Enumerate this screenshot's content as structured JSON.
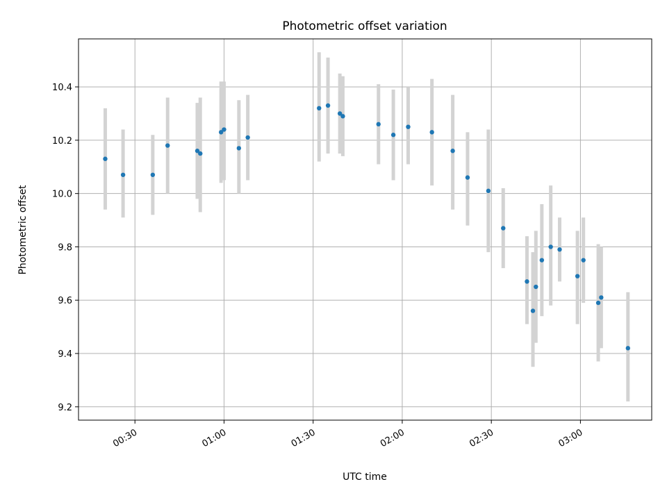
{
  "chart_data": {
    "type": "scatter",
    "title": "Photometric offset variation",
    "xlabel": "UTC time",
    "ylabel": "Photometric offset",
    "xlim": [
      "00:11",
      "03:24"
    ],
    "ylim": [
      9.15,
      10.58
    ],
    "x_ticks": [
      "00:30",
      "01:00",
      "01:30",
      "02:00",
      "02:30",
      "03:00"
    ],
    "y_ticks": [
      9.2,
      9.4,
      9.6,
      9.8,
      10.0,
      10.2,
      10.4
    ],
    "grid": true,
    "colors": {
      "points": "#1f77b4",
      "errorbars": "#d3d3d3",
      "grid": "#b0b0b0"
    },
    "series": [
      {
        "points": [
          {
            "x": "00:20",
            "y": 10.13,
            "err_low": 9.94,
            "err_high": 10.32
          },
          {
            "x": "00:26",
            "y": 10.07,
            "err_low": 9.91,
            "err_high": 10.24
          },
          {
            "x": "00:36",
            "y": 10.07,
            "err_low": 9.92,
            "err_high": 10.22
          },
          {
            "x": "00:41",
            "y": 10.18,
            "err_low": 10.0,
            "err_high": 10.36
          },
          {
            "x": "00:51",
            "y": 10.16,
            "err_low": 9.98,
            "err_high": 10.34
          },
          {
            "x": "00:52",
            "y": 10.15,
            "err_low": 9.93,
            "err_high": 10.36
          },
          {
            "x": "00:59",
            "y": 10.23,
            "err_low": 10.04,
            "err_high": 10.42
          },
          {
            "x": "01:00",
            "y": 10.24,
            "err_low": 10.05,
            "err_high": 10.42
          },
          {
            "x": "01:05",
            "y": 10.17,
            "err_low": 10.0,
            "err_high": 10.35
          },
          {
            "x": "01:08",
            "y": 10.21,
            "err_low": 10.05,
            "err_high": 10.37
          },
          {
            "x": "01:32",
            "y": 10.32,
            "err_low": 10.12,
            "err_high": 10.53
          },
          {
            "x": "01:35",
            "y": 10.33,
            "err_low": 10.15,
            "err_high": 10.51
          },
          {
            "x": "01:39",
            "y": 10.3,
            "err_low": 10.15,
            "err_high": 10.45
          },
          {
            "x": "01:40",
            "y": 10.29,
            "err_low": 10.14,
            "err_high": 10.44
          },
          {
            "x": "01:52",
            "y": 10.26,
            "err_low": 10.11,
            "err_high": 10.41
          },
          {
            "x": "01:57",
            "y": 10.22,
            "err_low": 10.05,
            "err_high": 10.39
          },
          {
            "x": "02:02",
            "y": 10.25,
            "err_low": 10.11,
            "err_high": 10.4
          },
          {
            "x": "02:10",
            "y": 10.23,
            "err_low": 10.03,
            "err_high": 10.43
          },
          {
            "x": "02:17",
            "y": 10.16,
            "err_low": 9.94,
            "err_high": 10.37
          },
          {
            "x": "02:22",
            "y": 10.06,
            "err_low": 9.88,
            "err_high": 10.23
          },
          {
            "x": "02:29",
            "y": 10.01,
            "err_low": 9.78,
            "err_high": 10.24
          },
          {
            "x": "02:34",
            "y": 9.87,
            "err_low": 9.72,
            "err_high": 10.02
          },
          {
            "x": "02:42",
            "y": 9.67,
            "err_low": 9.51,
            "err_high": 9.84
          },
          {
            "x": "02:44",
            "y": 9.56,
            "err_low": 9.35,
            "err_high": 9.78
          },
          {
            "x": "02:45",
            "y": 9.65,
            "err_low": 9.44,
            "err_high": 9.86
          },
          {
            "x": "02:47",
            "y": 9.75,
            "err_low": 9.54,
            "err_high": 9.96
          },
          {
            "x": "02:50",
            "y": 9.8,
            "err_low": 9.58,
            "err_high": 10.03
          },
          {
            "x": "02:53",
            "y": 9.79,
            "err_low": 9.67,
            "err_high": 9.91
          },
          {
            "x": "02:59",
            "y": 9.69,
            "err_low": 9.51,
            "err_high": 9.86
          },
          {
            "x": "03:01",
            "y": 9.75,
            "err_low": 9.59,
            "err_high": 9.91
          },
          {
            "x": "03:06",
            "y": 9.59,
            "err_low": 9.37,
            "err_high": 9.81
          },
          {
            "x": "03:07",
            "y": 9.61,
            "err_low": 9.42,
            "err_high": 9.8
          },
          {
            "x": "03:16",
            "y": 9.42,
            "err_low": 9.22,
            "err_high": 9.63
          }
        ]
      }
    ]
  }
}
